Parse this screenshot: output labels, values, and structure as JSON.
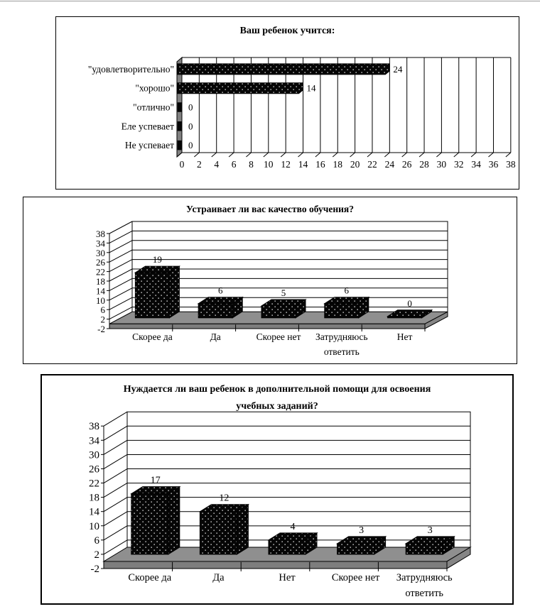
{
  "page": {
    "kind": "document page with three survey charts",
    "background": "#ffffff"
  },
  "colors": {
    "bar": "#060606",
    "bar_dot": "#ffffff",
    "outline": "#000000",
    "wall": "#ffffff",
    "left_wall_gray": "#808080",
    "floor_top": "#8f8f8f",
    "floor_front": "#7d7d7d",
    "floor_side": "#858585",
    "page_rule": "#9a9a9a"
  },
  "chart_data": [
    {
      "type": "bar",
      "orientation": "horizontal",
      "title": "Ваш ребенок учится:",
      "categories": [
        "\"удовлетворительно\"",
        "\"хорошо\"",
        "\"отлично\"",
        "Еле успевает",
        "Не успевает"
      ],
      "values": [
        24,
        14,
        0,
        0,
        0
      ],
      "value_labels": [
        "24",
        "14",
        "0",
        "0",
        "0"
      ],
      "value_axis": {
        "min": 0,
        "max": 38,
        "step": 2
      },
      "tick_labels": [
        "0",
        "2",
        "4",
        "6",
        "8",
        "10",
        "12",
        "14",
        "16",
        "18",
        "20",
        "22",
        "24",
        "26",
        "28",
        "30",
        "32",
        "34",
        "36",
        "38"
      ],
      "grid": true,
      "legend": false,
      "bar_fill": "black with sparse white dots pattern"
    },
    {
      "type": "bar",
      "orientation": "vertical-3d",
      "title": "Устраивает ли вас качество обучения?",
      "categories": [
        "Скорее да",
        "Да",
        "Скорее нет",
        "Затрудняюсь ответить",
        "Нет"
      ],
      "values": [
        19,
        6,
        5,
        6,
        0
      ],
      "value_labels": [
        "19",
        "6",
        "5",
        "6",
        "0"
      ],
      "value_axis": {
        "min": -2,
        "max": 38,
        "step": 4
      },
      "tick_labels": [
        "-2",
        "2",
        "6",
        "10",
        "14",
        "18",
        "22",
        "26",
        "30",
        "34",
        "38"
      ],
      "grid": true,
      "legend": false,
      "bar_fill": "black with sparse white dots pattern"
    },
    {
      "type": "bar",
      "orientation": "vertical-3d",
      "title": "Нуждается ли ваш ребенок в дополнительной помощи для освоения учебных заданий?",
      "categories": [
        "Скорее да",
        "Да",
        "Нет",
        "Скорее нет",
        "Затрудняюсь ответить"
      ],
      "values": [
        17,
        12,
        4,
        3,
        3
      ],
      "value_labels": [
        "17",
        "12",
        "4",
        "3",
        "3"
      ],
      "value_axis": {
        "min": -2,
        "max": 38,
        "step": 4
      },
      "tick_labels": [
        "-2",
        "2",
        "6",
        "10",
        "14",
        "18",
        "22",
        "26",
        "30",
        "34",
        "38"
      ],
      "grid": true,
      "legend": false,
      "bar_fill": "black with sparse white dots pattern"
    }
  ]
}
